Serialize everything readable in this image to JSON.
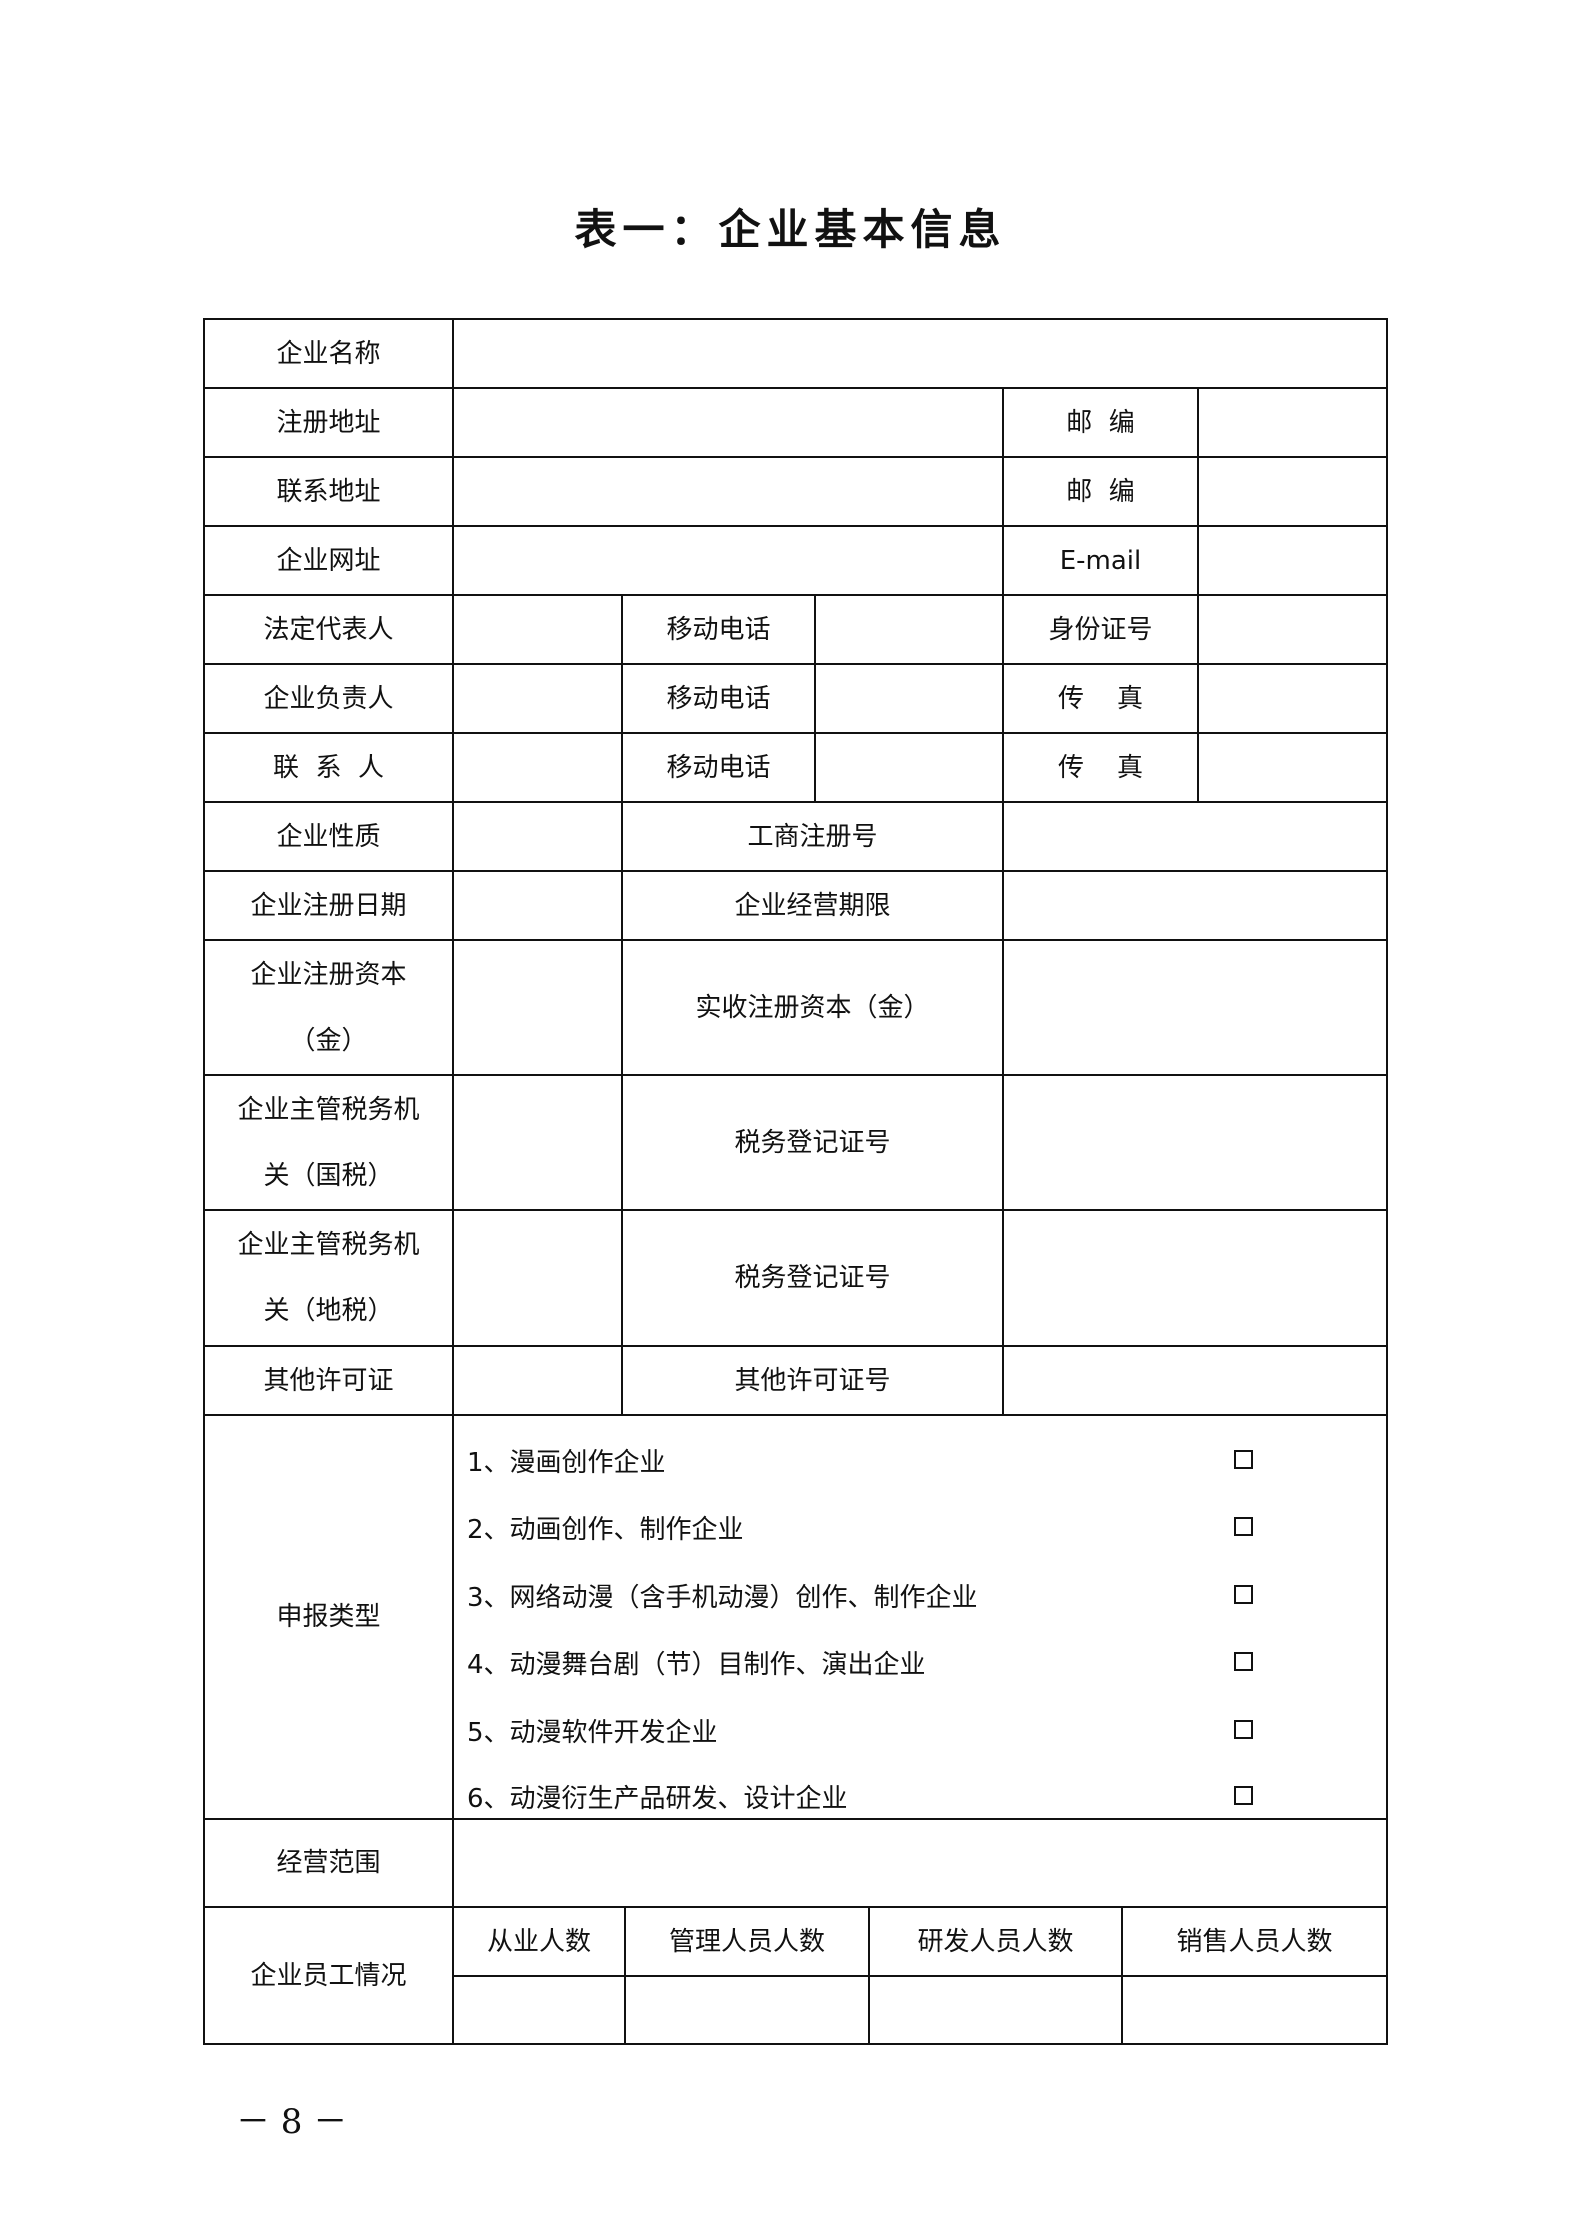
{
  "title": "表一：企业基本信息",
  "labels": {
    "company_name": "企业名称",
    "reg_address": "注册地址",
    "postcode": "邮  编",
    "contact_address": "联系地址",
    "website": "企业网址",
    "email": "E-mail",
    "legal_rep": "法定代表人",
    "mobile": "移动电话",
    "id_number": "身份证号",
    "manager": "企业负责人",
    "fax": "传    真",
    "contact_person": "联  系  人",
    "nature": "企业性质",
    "biz_reg_no": "工商注册号",
    "reg_date": "企业注册日期",
    "term": "企业经营期限",
    "reg_capital": "企业注册资本\n（金）",
    "paid_capital": "实收注册资本（金）",
    "tax_national": "企业主管税务机\n关（国税）",
    "tax_reg_no": "税务登记证号",
    "tax_local": "企业主管税务机\n关（地税）",
    "other_license": "其他许可证",
    "other_license_no": "其他许可证号",
    "declaration_type": "申报类型",
    "business_scope": "经营范围",
    "staff": "企业员工情况"
  },
  "declaration_items": [
    {
      "label": "1、漫画创作企业",
      "checked": false
    },
    {
      "label": "2、动画创作、制作企业",
      "checked": false
    },
    {
      "label": "3、网络动漫（含手机动漫）创作、制作企业",
      "checked": false
    },
    {
      "label": "4、动漫舞台剧（节）目制作、演出企业",
      "checked": false
    },
    {
      "label": "5、动漫软件开发企业",
      "checked": false
    },
    {
      "label": "6、动漫衍生产品研发、设计企业",
      "checked": false
    }
  ],
  "staff_headers": [
    "从业人数",
    "管理人员人数",
    "研发人员人数",
    "销售人员人数"
  ],
  "page_number": "－ 8 －"
}
